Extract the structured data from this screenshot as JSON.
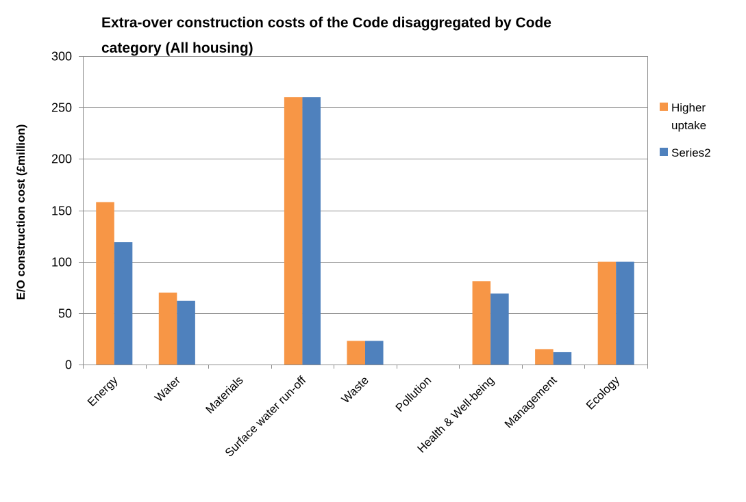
{
  "chart_data": {
    "type": "bar",
    "title_lines": [
      "Extra-over construction costs of the Code disaggregated by Code",
      "category (All housing)"
    ],
    "xlabel": "",
    "ylabel": "E/O construction cost (£million)",
    "ylim": [
      0,
      300
    ],
    "yticks": [
      0,
      50,
      100,
      150,
      200,
      250,
      300
    ],
    "grid": true,
    "legend_position": "right",
    "categories": [
      "Energy",
      "Water",
      "Materials",
      "Surface water run-off",
      "Waste",
      "Pollution",
      "Health & Well-being",
      "Management",
      "Ecology"
    ],
    "series": [
      {
        "name_lines": [
          "Higher",
          "uptake"
        ],
        "color": "#f79646",
        "values": [
          158,
          70,
          0,
          260,
          23,
          0,
          81,
          15,
          100
        ]
      },
      {
        "name_lines": [
          "Series2"
        ],
        "color": "#4f81bd",
        "values": [
          119,
          62,
          0,
          260,
          23,
          0,
          69,
          12,
          100
        ]
      }
    ]
  }
}
